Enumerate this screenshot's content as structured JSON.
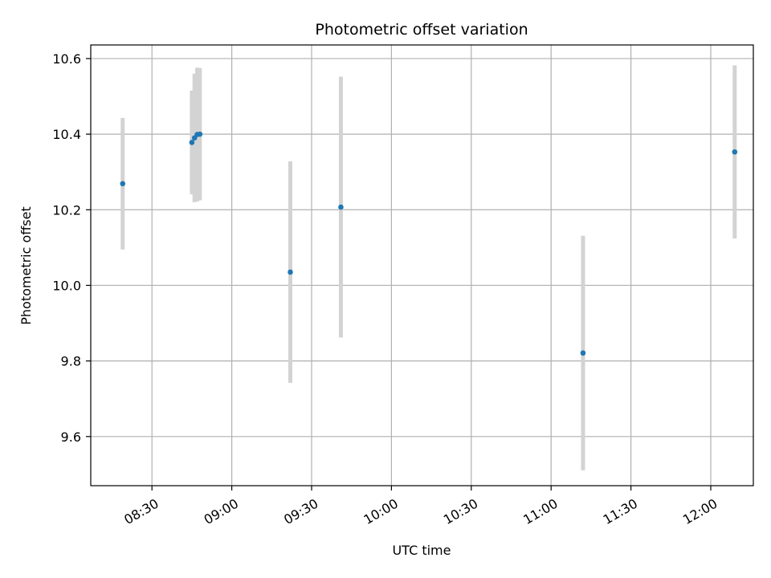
{
  "chart_data": {
    "type": "scatter",
    "title": "Photometric offset variation",
    "xlabel": "UTC time",
    "ylabel": "Photometric offset",
    "x_format": "HH:MM",
    "xlim": [
      "08:07",
      "12:16"
    ],
    "ylim": [
      9.47,
      10.636
    ],
    "xticks": [
      "08:30",
      "09:00",
      "09:30",
      "10:00",
      "10:30",
      "11:00",
      "11:30",
      "12:00"
    ],
    "yticks": [
      9.6,
      9.8,
      10.0,
      10.2,
      10.4,
      10.6
    ],
    "ytick_labels": [
      "9.6",
      "9.8",
      "10.0",
      "10.2",
      "10.4",
      "10.6"
    ],
    "grid": true,
    "marker_color": "#1f77b4",
    "errorbar_color": "#d3d3d3",
    "points": [
      {
        "time": "08:19",
        "y": 10.269,
        "err": 0.174
      },
      {
        "time": "08:45",
        "y": 10.378,
        "err": 0.137
      },
      {
        "time": "08:46",
        "y": 10.39,
        "err": 0.17
      },
      {
        "time": "08:47",
        "y": 10.399,
        "err": 0.177
      },
      {
        "time": "08:48",
        "y": 10.4,
        "err": 0.175
      },
      {
        "time": "09:22",
        "y": 10.035,
        "err": 0.293
      },
      {
        "time": "09:41",
        "y": 10.207,
        "err": 0.345
      },
      {
        "time": "11:12",
        "y": 9.821,
        "err": 0.31
      },
      {
        "time": "12:09",
        "y": 10.353,
        "err": 0.229
      }
    ]
  }
}
